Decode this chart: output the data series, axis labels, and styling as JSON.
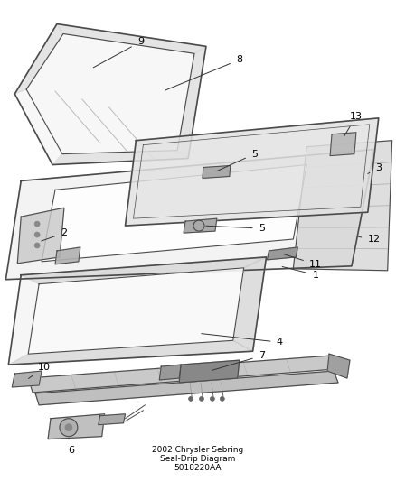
{
  "title": "2002 Chrysler Sebring\nSeal-Drip Diagram\n5018220AA",
  "background_color": "#ffffff",
  "line_color": "#4a4a4a",
  "label_color": "#000000",
  "fig_width": 4.39,
  "fig_height": 5.33
}
